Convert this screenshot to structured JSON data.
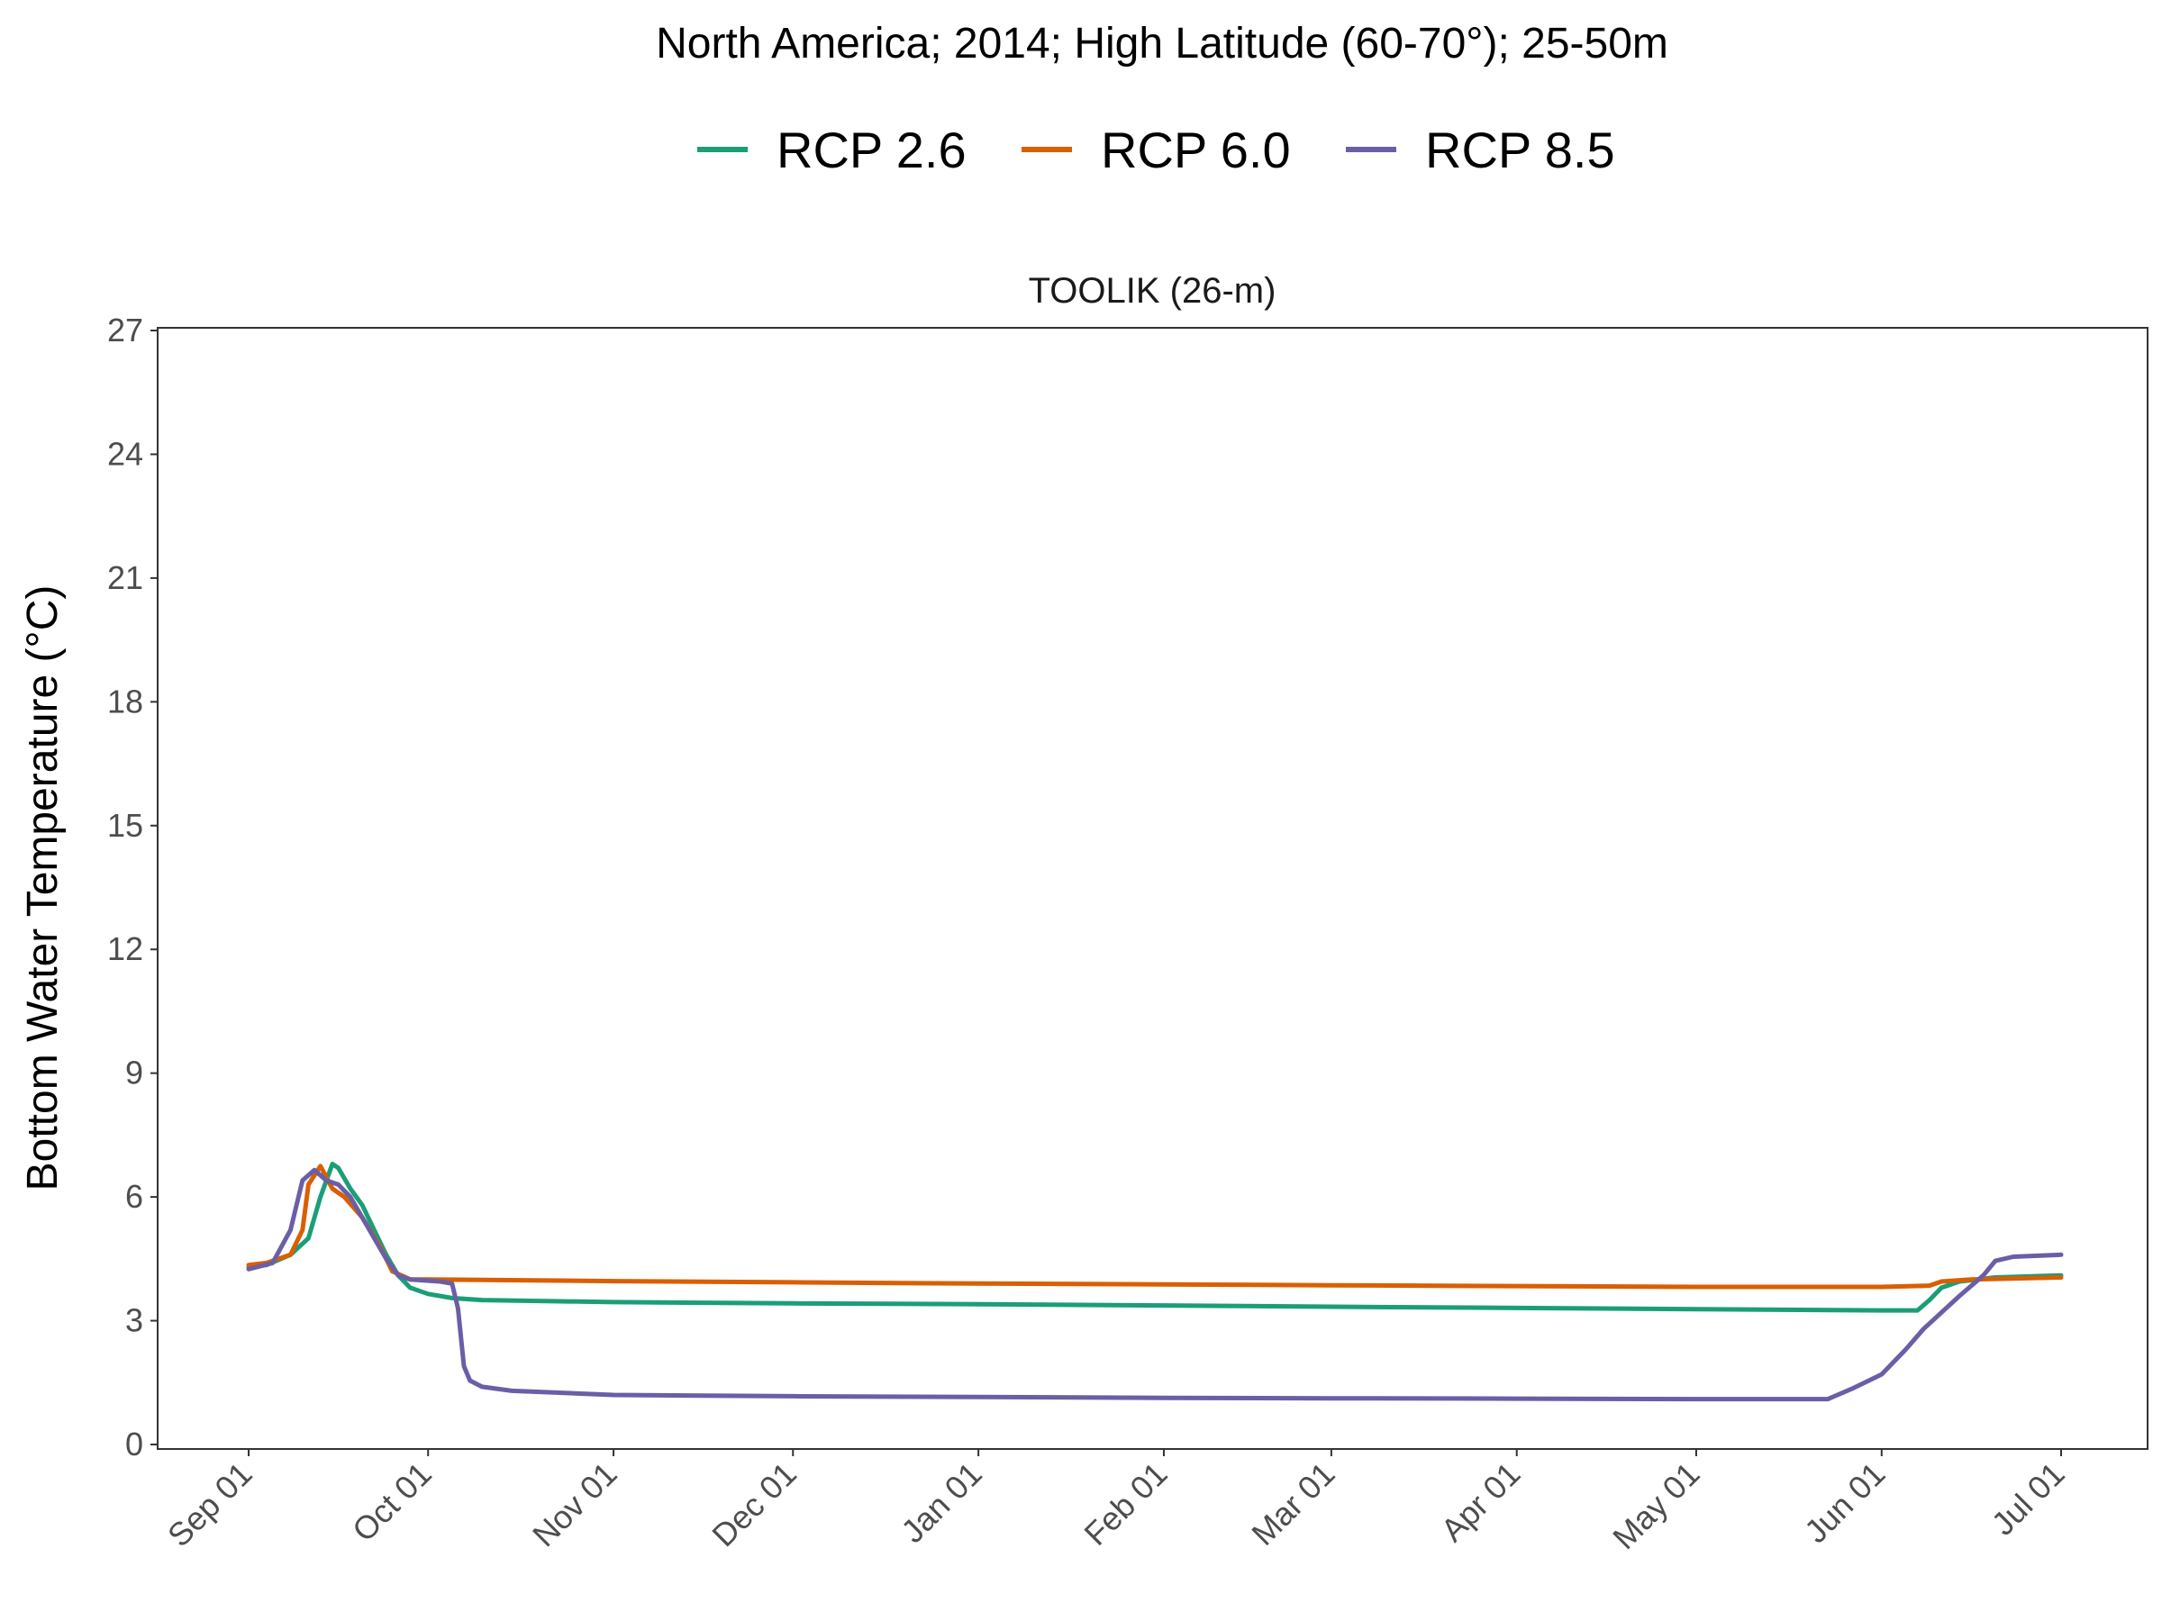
{
  "chart_data": {
    "type": "line",
    "title": "North America;  2014;  High Latitude (60-70°);  25-50m",
    "panel_title": "TOOLIK (26-m)",
    "ylabel": "Bottom Water Temperature (°C)",
    "xlabel": "",
    "ylim": [
      0,
      27
    ],
    "yticks": [
      0,
      3,
      6,
      9,
      12,
      15,
      18,
      21,
      24,
      27
    ],
    "x_range": [
      "2014-09-01",
      "2015-07-01"
    ],
    "xticks": [
      {
        "date": "2014-09-01",
        "label": "Sep 01"
      },
      {
        "date": "2014-10-01",
        "label": "Oct 01"
      },
      {
        "date": "2014-11-01",
        "label": "Nov 01"
      },
      {
        "date": "2014-12-01",
        "label": "Dec 01"
      },
      {
        "date": "2015-01-01",
        "label": "Jan 01"
      },
      {
        "date": "2015-02-01",
        "label": "Feb 01"
      },
      {
        "date": "2015-03-01",
        "label": "Mar 01"
      },
      {
        "date": "2015-04-01",
        "label": "Apr 01"
      },
      {
        "date": "2015-05-01",
        "label": "May 01"
      },
      {
        "date": "2015-06-01",
        "label": "Jun 01"
      },
      {
        "date": "2015-07-01",
        "label": "Jul 01"
      }
    ],
    "legend_position": "top",
    "grid": false,
    "series": [
      {
        "name": "RCP 2.6",
        "color": "#1b9e77",
        "points": [
          [
            "2014-09-01",
            4.3
          ],
          [
            "2014-09-04",
            4.35
          ],
          [
            "2014-09-08",
            4.6
          ],
          [
            "2014-09-11",
            5.0
          ],
          [
            "2014-09-13",
            6.0
          ],
          [
            "2014-09-15",
            6.8
          ],
          [
            "2014-09-16",
            6.7
          ],
          [
            "2014-09-18",
            6.2
          ],
          [
            "2014-09-20",
            5.8
          ],
          [
            "2014-09-22",
            5.2
          ],
          [
            "2014-09-24",
            4.6
          ],
          [
            "2014-09-26",
            4.1
          ],
          [
            "2014-09-28",
            3.8
          ],
          [
            "2014-10-01",
            3.65
          ],
          [
            "2014-10-05",
            3.55
          ],
          [
            "2014-10-10",
            3.5
          ],
          [
            "2014-11-01",
            3.45
          ],
          [
            "2014-12-01",
            3.42
          ],
          [
            "2015-01-01",
            3.4
          ],
          [
            "2015-02-01",
            3.37
          ],
          [
            "2015-03-01",
            3.34
          ],
          [
            "2015-04-01",
            3.31
          ],
          [
            "2015-05-01",
            3.28
          ],
          [
            "2015-06-01",
            3.25
          ],
          [
            "2015-06-07",
            3.25
          ],
          [
            "2015-06-09",
            3.5
          ],
          [
            "2015-06-11",
            3.8
          ],
          [
            "2015-06-14",
            3.95
          ],
          [
            "2015-06-20",
            4.05
          ],
          [
            "2015-07-01",
            4.1
          ]
        ]
      },
      {
        "name": "RCP 6.0",
        "color": "#d95f02",
        "points": [
          [
            "2014-09-01",
            4.35
          ],
          [
            "2014-09-04",
            4.4
          ],
          [
            "2014-09-08",
            4.6
          ],
          [
            "2014-09-10",
            5.2
          ],
          [
            "2014-09-11",
            6.3
          ],
          [
            "2014-09-13",
            6.75
          ],
          [
            "2014-09-15",
            6.2
          ],
          [
            "2014-09-17",
            6.0
          ],
          [
            "2014-09-20",
            5.5
          ],
          [
            "2014-09-23",
            4.8
          ],
          [
            "2014-09-25",
            4.2
          ],
          [
            "2014-09-28",
            4.0
          ],
          [
            "2014-10-01",
            4.0
          ],
          [
            "2014-11-01",
            3.96
          ],
          [
            "2014-12-01",
            3.93
          ],
          [
            "2015-01-01",
            3.9
          ],
          [
            "2015-02-01",
            3.88
          ],
          [
            "2015-03-01",
            3.86
          ],
          [
            "2015-04-01",
            3.84
          ],
          [
            "2015-05-01",
            3.82
          ],
          [
            "2015-06-01",
            3.82
          ],
          [
            "2015-06-09",
            3.85
          ],
          [
            "2015-06-11",
            3.95
          ],
          [
            "2015-06-16",
            4.0
          ],
          [
            "2015-07-01",
            4.05
          ]
        ]
      },
      {
        "name": "RCP 8.5",
        "color": "#6a5fa6",
        "points": [
          [
            "2014-09-01",
            4.25
          ],
          [
            "2014-09-05",
            4.4
          ],
          [
            "2014-09-08",
            5.2
          ],
          [
            "2014-09-10",
            6.4
          ],
          [
            "2014-09-12",
            6.65
          ],
          [
            "2014-09-14",
            6.4
          ],
          [
            "2014-09-16",
            6.3
          ],
          [
            "2014-09-18",
            6.0
          ],
          [
            "2014-09-20",
            5.5
          ],
          [
            "2014-09-22",
            5.0
          ],
          [
            "2014-09-24",
            4.5
          ],
          [
            "2014-09-26",
            4.1
          ],
          [
            "2014-09-28",
            4.0
          ],
          [
            "2014-10-03",
            3.95
          ],
          [
            "2014-10-05",
            3.9
          ],
          [
            "2014-10-06",
            3.3
          ],
          [
            "2014-10-07",
            1.9
          ],
          [
            "2014-10-08",
            1.55
          ],
          [
            "2014-10-10",
            1.4
          ],
          [
            "2014-10-15",
            1.3
          ],
          [
            "2014-11-01",
            1.2
          ],
          [
            "2014-12-01",
            1.17
          ],
          [
            "2015-01-01",
            1.15
          ],
          [
            "2015-02-01",
            1.13
          ],
          [
            "2015-03-01",
            1.12
          ],
          [
            "2015-04-01",
            1.11
          ],
          [
            "2015-05-01",
            1.1
          ],
          [
            "2015-05-23",
            1.1
          ],
          [
            "2015-05-27",
            1.35
          ],
          [
            "2015-06-01",
            1.7
          ],
          [
            "2015-06-03",
            2.0
          ],
          [
            "2015-06-05",
            2.3
          ],
          [
            "2015-06-08",
            2.8
          ],
          [
            "2015-06-14",
            3.6
          ],
          [
            "2015-06-18",
            4.1
          ],
          [
            "2015-06-20",
            4.45
          ],
          [
            "2015-06-23",
            4.55
          ],
          [
            "2015-07-01",
            4.6
          ]
        ]
      }
    ]
  }
}
